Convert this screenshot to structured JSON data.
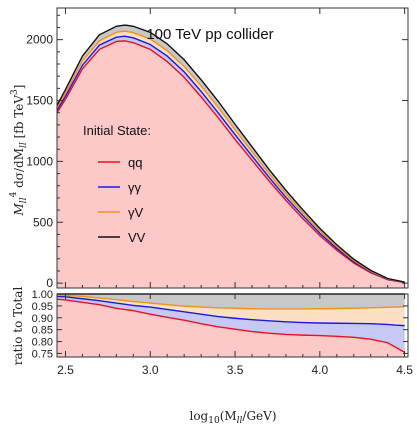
{
  "chart_data": [
    {
      "type": "area",
      "title": "100 TeV pp collider",
      "ylabel_main": "M",
      "ylabel_sub": "ll",
      "ylabel_sup": "4",
      "ylabel_rest": " dσ/dM",
      "ylabel_sub2": "ll",
      "ylabel_units": " [fb TeV",
      "ylabel_units_sup": "3",
      "ylabel_units_end": "]",
      "xlim": [
        2.45,
        4.52
      ],
      "ylim": [
        -40,
        2260
      ],
      "y_ticks": [
        0,
        500,
        1000,
        1500,
        2000
      ],
      "y_tick_labels": [
        "0",
        "500",
        "1000",
        "1500",
        "2000"
      ],
      "legend_title": "Initial State:",
      "legend_placement": "center-left",
      "x": [
        2.45,
        2.5,
        2.6,
        2.7,
        2.8,
        2.85,
        2.9,
        3.0,
        3.1,
        3.2,
        3.3,
        3.4,
        3.5,
        3.6,
        3.7,
        3.8,
        3.9,
        4.0,
        4.1,
        4.2,
        4.3,
        4.4,
        4.5
      ],
      "series": [
        {
          "name": "qq",
          "color": "#e8121e",
          "values": [
            1400,
            1510,
            1760,
            1920,
            1985,
            1990,
            1975,
            1920,
            1820,
            1690,
            1530,
            1360,
            1180,
            1010,
            840,
            680,
            530,
            390,
            270,
            165,
            85,
            28,
            5
          ]
        },
        {
          "name": "γγ",
          "color": "#1a1adc",
          "values": [
            1420,
            1535,
            1790,
            1955,
            2020,
            2028,
            2015,
            1960,
            1865,
            1735,
            1575,
            1400,
            1220,
            1045,
            870,
            705,
            555,
            410,
            285,
            175,
            92,
            32,
            7
          ]
        },
        {
          "name": "γV",
          "color": "#f0921e",
          "values": [
            1440,
            1560,
            1825,
            1990,
            2060,
            2070,
            2058,
            2005,
            1910,
            1780,
            1620,
            1445,
            1260,
            1080,
            900,
            732,
            578,
            430,
            300,
            185,
            98,
            35,
            8
          ]
        },
        {
          "name": "VV",
          "color": "#111111",
          "values": [
            1460,
            1590,
            1865,
            2040,
            2110,
            2120,
            2110,
            2060,
            1965,
            1835,
            1670,
            1495,
            1305,
            1120,
            935,
            762,
            602,
            450,
            315,
            196,
            105,
            38,
            9
          ]
        }
      ]
    },
    {
      "type": "area",
      "xlabel": "log",
      "xlabel_sub": "10",
      "xlabel_rest": "(M",
      "xlabel_sub2": "ll",
      "xlabel_end": "/GeV)",
      "ylabel": "ratio to Total",
      "xlim": [
        2.45,
        4.52
      ],
      "ylim": [
        0.735,
        1.0
      ],
      "x_ticks": [
        2.5,
        3.0,
        3.5,
        4.0,
        4.5
      ],
      "x_tick_labels": [
        "2.5",
        "3.0",
        "3.5",
        "4.0",
        "4.5"
      ],
      "y_ticks": [
        0.75,
        0.8,
        0.85,
        0.9,
        0.95,
        1.0
      ],
      "y_tick_labels": [
        "0.75",
        "0.80",
        "0.85",
        "0.90",
        "0.95",
        "1.00"
      ],
      "x": [
        2.45,
        2.5,
        2.6,
        2.7,
        2.8,
        2.9,
        3.0,
        3.1,
        3.2,
        3.3,
        3.4,
        3.5,
        3.6,
        3.7,
        3.8,
        3.9,
        4.0,
        4.1,
        4.2,
        4.3,
        4.4,
        4.45,
        4.5
      ],
      "series": [
        {
          "name": "qq",
          "color": "#e8121e",
          "values": [
            0.978,
            0.975,
            0.965,
            0.955,
            0.94,
            0.93,
            0.915,
            0.902,
            0.89,
            0.875,
            0.862,
            0.852,
            0.842,
            0.835,
            0.83,
            0.827,
            0.825,
            0.822,
            0.818,
            0.81,
            0.795,
            0.775,
            0.755
          ]
        },
        {
          "name": "γγ",
          "color": "#1a1adc",
          "values": [
            0.99,
            0.988,
            0.98,
            0.972,
            0.962,
            0.952,
            0.945,
            0.935,
            0.925,
            0.915,
            0.905,
            0.898,
            0.892,
            0.887,
            0.883,
            0.88,
            0.878,
            0.877,
            0.876,
            0.875,
            0.872,
            0.869,
            0.867
          ]
        },
        {
          "name": "γV",
          "color": "#f0921e",
          "values": [
            0.995,
            0.994,
            0.99,
            0.983,
            0.976,
            0.968,
            0.962,
            0.955,
            0.949,
            0.945,
            0.942,
            0.94,
            0.938,
            0.937,
            0.937,
            0.937,
            0.938,
            0.939,
            0.94,
            0.942,
            0.944,
            0.945,
            0.946
          ]
        },
        {
          "name": "VV",
          "color": "#111111",
          "values": [
            1.0,
            1.0,
            1.0,
            1.0,
            1.0,
            1.0,
            1.0,
            1.0,
            1.0,
            1.0,
            1.0,
            1.0,
            1.0,
            1.0,
            1.0,
            1.0,
            1.0,
            1.0,
            1.0,
            1.0,
            1.0,
            1.0,
            1.0
          ]
        }
      ]
    }
  ],
  "colors": {
    "fill_qq": "#fcc8c8",
    "fill_gg": "#c8c8f4",
    "fill_gV": "#fde0c4",
    "fill_VV": "#c8c8c8"
  }
}
